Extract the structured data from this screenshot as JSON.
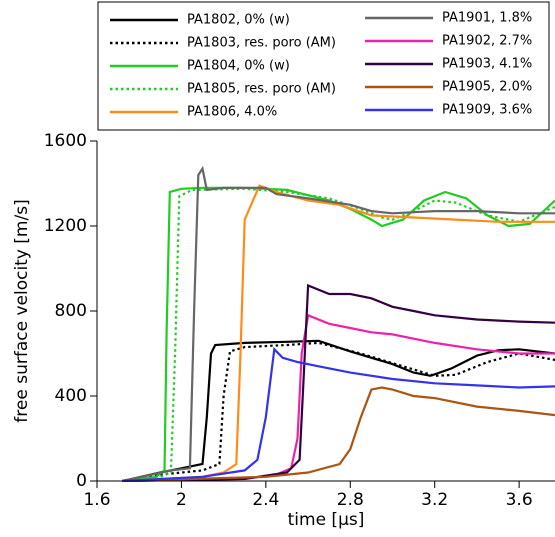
{
  "chart_data": {
    "type": "line",
    "x_label": "time [µs]",
    "y_label": "free surface velocity [m/s]",
    "xlim": [
      1.6,
      3.77
    ],
    "ylim": [
      0,
      1600
    ],
    "xticks": [
      1.6,
      2,
      2.4,
      2.8,
      3.2,
      3.6
    ],
    "yticks": [
      0,
      400,
      800,
      1200,
      1600
    ],
    "series": [
      {
        "name": "PA1802, 0% (w)",
        "color": "#000000",
        "style": "solid",
        "x": [
          1.72,
          1.9,
          2.0,
          2.1,
          2.12,
          2.14,
          2.16,
          2.3,
          2.5,
          2.65,
          2.8,
          3.0,
          3.1,
          3.18,
          3.28,
          3.4,
          3.5,
          3.6,
          3.77
        ],
        "values": [
          0,
          40,
          60,
          80,
          300,
          600,
          640,
          650,
          655,
          660,
          610,
          550,
          510,
          495,
          530,
          590,
          615,
          620,
          600
        ]
      },
      {
        "name": "PA1803, res. poro (AM)",
        "color": "#000000",
        "style": "dotted",
        "x": [
          1.72,
          1.9,
          2.1,
          2.18,
          2.2,
          2.23,
          2.3,
          2.5,
          2.65,
          2.85,
          3.05,
          3.2,
          3.3,
          3.45,
          3.6,
          3.77
        ],
        "values": [
          0,
          30,
          50,
          80,
          400,
          610,
          630,
          640,
          650,
          600,
          540,
          495,
          500,
          560,
          600,
          570
        ]
      },
      {
        "name": "PA1804, 0% (w)",
        "color": "#22cc22",
        "style": "solid",
        "x": [
          1.72,
          1.88,
          1.92,
          1.93,
          1.945,
          2.0,
          2.1,
          2.3,
          2.5,
          2.7,
          2.8,
          2.9,
          2.95,
          3.05,
          3.15,
          3.25,
          3.35,
          3.45,
          3.55,
          3.65,
          3.77
        ],
        "values": [
          0,
          20,
          50,
          700,
          1360,
          1375,
          1380,
          1380,
          1370,
          1320,
          1280,
          1230,
          1200,
          1230,
          1320,
          1360,
          1330,
          1250,
          1200,
          1210,
          1320
        ]
      },
      {
        "name": "PA1805, res. poro (AM)",
        "color": "#22cc22",
        "style": "dotted",
        "x": [
          1.72,
          1.9,
          1.95,
          1.97,
          1.99,
          2.05,
          2.3,
          2.5,
          2.7,
          2.85,
          2.95,
          3.0,
          3.1,
          3.2,
          3.3,
          3.45,
          3.6,
          3.77
        ],
        "values": [
          0,
          20,
          40,
          600,
          1340,
          1370,
          1375,
          1360,
          1330,
          1280,
          1240,
          1230,
          1270,
          1320,
          1310,
          1250,
          1220,
          1290
        ]
      },
      {
        "name": "PA1806, 4.0%",
        "color": "#ff8c1a",
        "style": "solid",
        "x": [
          1.72,
          2.1,
          2.2,
          2.26,
          2.28,
          2.3,
          2.33,
          2.37,
          2.45,
          2.6,
          2.75,
          2.9,
          3.1,
          3.3,
          3.5,
          3.77
        ],
        "values": [
          0,
          20,
          40,
          80,
          600,
          1230,
          1300,
          1390,
          1360,
          1320,
          1300,
          1250,
          1240,
          1230,
          1220,
          1220
        ]
      },
      {
        "name": "PA1901, 1.8%",
        "color": "#666666",
        "style": "solid",
        "x": [
          1.72,
          1.95,
          2.04,
          2.06,
          2.08,
          2.1,
          2.12,
          2.2,
          2.4,
          2.45,
          2.6,
          2.8,
          2.9,
          3.0,
          3.2,
          3.4,
          3.6,
          3.77
        ],
        "values": [
          0,
          50,
          60,
          800,
          1440,
          1470,
          1370,
          1380,
          1380,
          1350,
          1330,
          1300,
          1270,
          1260,
          1270,
          1270,
          1260,
          1260
        ]
      },
      {
        "name": "PA1902, 2.7%",
        "color": "#ee22aa",
        "style": "solid",
        "x": [
          1.72,
          2.3,
          2.45,
          2.52,
          2.55,
          2.57,
          2.6,
          2.7,
          2.8,
          2.9,
          3.0,
          3.2,
          3.4,
          3.6,
          3.77
        ],
        "values": [
          0,
          10,
          30,
          60,
          200,
          600,
          780,
          740,
          720,
          700,
          690,
          650,
          620,
          600,
          600
        ]
      },
      {
        "name": "PA1903, 4.1%",
        "color": "#330044",
        "style": "solid",
        "x": [
          1.72,
          2.3,
          2.5,
          2.56,
          2.58,
          2.6,
          2.7,
          2.8,
          2.9,
          3.0,
          3.1,
          3.2,
          3.4,
          3.6,
          3.77
        ],
        "values": [
          0,
          10,
          40,
          100,
          500,
          920,
          880,
          880,
          860,
          820,
          800,
          780,
          760,
          750,
          745
        ]
      },
      {
        "name": "PA1905, 2.0%",
        "color": "#aa5511",
        "style": "solid",
        "x": [
          1.72,
          2.4,
          2.6,
          2.75,
          2.8,
          2.85,
          2.9,
          2.95,
          3.0,
          3.1,
          3.2,
          3.4,
          3.6,
          3.77
        ],
        "values": [
          0,
          20,
          40,
          80,
          150,
          300,
          430,
          440,
          430,
          400,
          390,
          350,
          330,
          310
        ]
      },
      {
        "name": "PA1909, 3.6%",
        "color": "#3333ee",
        "style": "solid",
        "x": [
          1.72,
          2.1,
          2.3,
          2.36,
          2.4,
          2.44,
          2.48,
          2.55,
          2.65,
          2.8,
          3.0,
          3.2,
          3.4,
          3.6,
          3.77
        ],
        "values": [
          0,
          20,
          50,
          100,
          300,
          620,
          580,
          560,
          540,
          510,
          480,
          460,
          450,
          440,
          445
        ]
      }
    ],
    "legend_columns": 2
  }
}
